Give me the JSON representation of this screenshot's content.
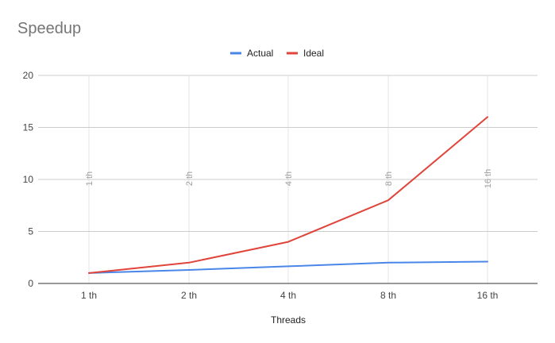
{
  "chart_data": {
    "type": "line",
    "title": "Speedup",
    "xlabel": "Threads",
    "ylabel": "",
    "categories": [
      "1 th",
      "2 th",
      "4 th",
      "8 th",
      "16 th"
    ],
    "series": [
      {
        "name": "Actual",
        "values": [
          1,
          1.3,
          1.65,
          2.0,
          2.1
        ],
        "color": "#4a86e8"
      },
      {
        "name": "Ideal",
        "values": [
          1,
          2,
          4,
          8,
          16
        ],
        "color": "#e0443a"
      }
    ],
    "ylim": [
      0,
      20
    ],
    "yticks": [
      0,
      5,
      10,
      15,
      20
    ],
    "grid": true,
    "legend": "top-center",
    "vertical_line_labels": [
      "1 th",
      "2 th",
      "4 th",
      "8 th",
      "16 th"
    ],
    "colors": {
      "gridline": "#cccccc",
      "vertical_gridline": "#e6e6e6",
      "axis": "#333333",
      "title": "#757575"
    }
  }
}
